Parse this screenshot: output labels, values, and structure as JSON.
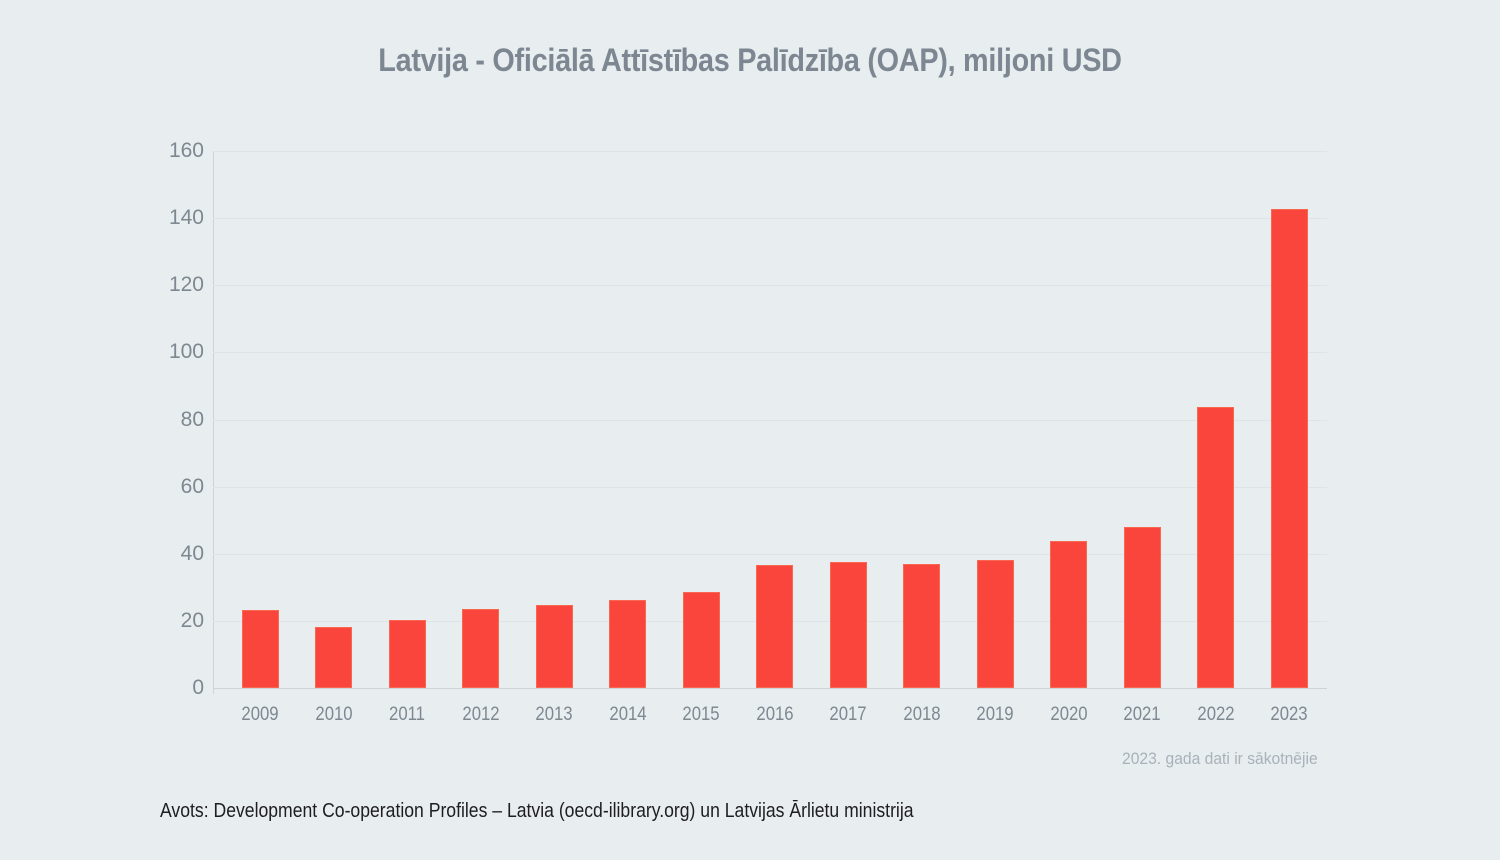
{
  "colors": {
    "background": "#e8edf0",
    "bar": "#fa453c",
    "title-text": "#7c8791",
    "tick-text": "#7e8890",
    "note-text": "#a8b2b9",
    "source-text": "#1e1e1e",
    "gridline": "#dde3e7",
    "axis-line": "#ccd4d9"
  },
  "chart_data": {
    "type": "bar",
    "title": "Latvija - Oficiālā Attīstības Palīdzība (OAP), miljoni USD",
    "categories": [
      "2009",
      "2010",
      "2011",
      "2012",
      "2013",
      "2014",
      "2015",
      "2016",
      "2017",
      "2018",
      "2019",
      "2020",
      "2021",
      "2022",
      "2023"
    ],
    "values": [
      23.3,
      18.2,
      20.2,
      23.4,
      24.7,
      26.1,
      28.7,
      36.8,
      37.4,
      36.9,
      38.0,
      43.7,
      47.9,
      83.7,
      142.8
    ],
    "xlabel": "",
    "ylabel": "",
    "ylim": [
      0,
      160
    ],
    "ytick_step": 20,
    "grid": true,
    "legend": false,
    "annotations": {
      "note": "2023. gada dati ir sākotnējie",
      "source": "Avots: Development Co-operation Profiles – Latvia (oecd-ilibrary.org) un Latvijas Ārlietu ministrija"
    }
  }
}
